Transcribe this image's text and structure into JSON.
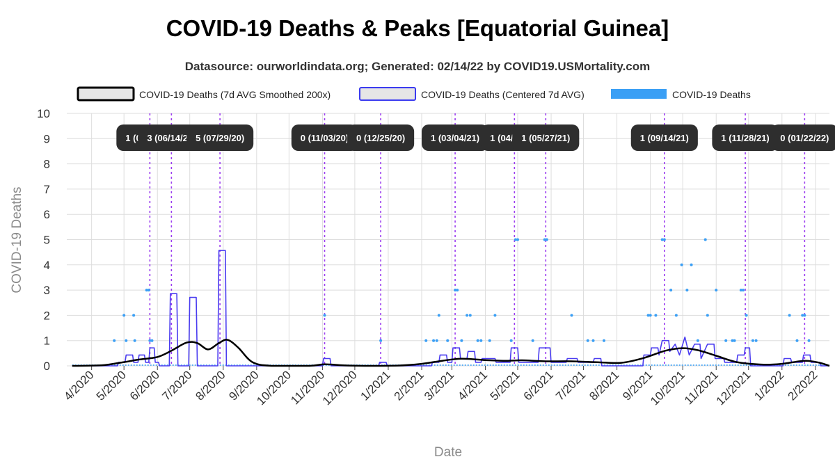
{
  "title": "COVID-19 Deaths & Peaks [Equatorial Guinea]",
  "subtitle": "Datasource: ourworldindata.org; Generated: 02/14/22 by COVID19.USMortality.com",
  "chart_data": {
    "type": "line",
    "title": "COVID-19 Deaths & Peaks [Equatorial Guinea]",
    "xlabel": "Date",
    "ylabel": "COVID-19 Deaths",
    "xlim": [
      "2020-03-09",
      "2022-02-14"
    ],
    "ylim": [
      0,
      10
    ],
    "y_ticks": [
      0,
      1,
      2,
      3,
      4,
      5,
      6,
      7,
      8,
      9,
      10
    ],
    "x_ticks": [
      {
        "date": "2020-04-01",
        "label": "4/2020"
      },
      {
        "date": "2020-05-01",
        "label": "5/2020"
      },
      {
        "date": "2020-06-01",
        "label": "6/2020"
      },
      {
        "date": "2020-07-01",
        "label": "7/2020"
      },
      {
        "date": "2020-08-01",
        "label": "8/2020"
      },
      {
        "date": "2020-09-01",
        "label": "9/2020"
      },
      {
        "date": "2020-10-01",
        "label": "10/2020"
      },
      {
        "date": "2020-11-01",
        "label": "11/2020"
      },
      {
        "date": "2020-12-01",
        "label": "12/2020"
      },
      {
        "date": "2021-01-01",
        "label": "1/2021"
      },
      {
        "date": "2021-02-01",
        "label": "2/2021"
      },
      {
        "date": "2021-03-01",
        "label": "3/2021"
      },
      {
        "date": "2021-04-01",
        "label": "4/2021"
      },
      {
        "date": "2021-05-01",
        "label": "5/2021"
      },
      {
        "date": "2021-06-01",
        "label": "6/2021"
      },
      {
        "date": "2021-07-01",
        "label": "7/2021"
      },
      {
        "date": "2021-08-01",
        "label": "8/2021"
      },
      {
        "date": "2021-09-01",
        "label": "9/2021"
      },
      {
        "date": "2021-10-01",
        "label": "10/2021"
      },
      {
        "date": "2021-11-01",
        "label": "11/2021"
      },
      {
        "date": "2021-12-01",
        "label": "12/2021"
      },
      {
        "date": "2022-01-01",
        "label": "1/2022"
      },
      {
        "date": "2022-02-01",
        "label": "2/2022"
      }
    ],
    "grid": true,
    "legend_position": "top",
    "legend": [
      {
        "name": "COVID-19 Deaths (7d AVG Smoothed 200x)",
        "color": "#000000",
        "fill": "#e6e6e6",
        "style": "line"
      },
      {
        "name": "COVID-19 Deaths (Centered 7d AVG)",
        "color": "#3b3bf0",
        "fill": "#e6e6e6",
        "style": "line"
      },
      {
        "name": "COVID-19 Deaths",
        "color": "#3a9ff5",
        "fill": "#3a9ff5",
        "style": "points"
      }
    ],
    "colors": {
      "smoothed": "#000000",
      "avg7": "#4a3cf0",
      "daily": "#3a9ff5",
      "peak_line": "#9b3cf0",
      "peak_box": "#2e2e2e",
      "grid": "#dddddd"
    },
    "peaks": [
      {
        "date": "2020-05-25",
        "label": "1 (05/25/20)"
      },
      {
        "date": "2020-06-14",
        "label": "3 (06/14/20)"
      },
      {
        "date": "2020-07-29",
        "label": "5 (07/29/20)"
      },
      {
        "date": "2020-11-03",
        "label": "0 (11/03/20)"
      },
      {
        "date": "2020-12-25",
        "label": "0 (12/25/20)"
      },
      {
        "date": "2021-03-04",
        "label": "1 (03/04/21)"
      },
      {
        "date": "2021-04-28",
        "label": "1 (04/28/21)"
      },
      {
        "date": "2021-05-27",
        "label": "1 (05/27/21)"
      },
      {
        "date": "2021-09-14",
        "label": "1 (09/14/21)"
      },
      {
        "date": "2021-11-28",
        "label": "1 (11/28/21)"
      },
      {
        "date": "2022-01-22",
        "label": "0 (01/22/22)"
      }
    ],
    "series": [
      {
        "name": "COVID-19 Deaths (7d AVG Smoothed 200x)",
        "points": [
          [
            "2020-03-14",
            0
          ],
          [
            "2020-04-10",
            0.02
          ],
          [
            "2020-05-01",
            0.15
          ],
          [
            "2020-05-15",
            0.25
          ],
          [
            "2020-06-01",
            0.35
          ],
          [
            "2020-06-14",
            0.6
          ],
          [
            "2020-06-28",
            0.92
          ],
          [
            "2020-07-08",
            0.9
          ],
          [
            "2020-07-18",
            0.65
          ],
          [
            "2020-07-28",
            0.9
          ],
          [
            "2020-08-05",
            1.03
          ],
          [
            "2020-08-15",
            0.72
          ],
          [
            "2020-08-28",
            0.15
          ],
          [
            "2020-09-15",
            0
          ],
          [
            "2020-10-20",
            0
          ],
          [
            "2020-11-03",
            0.06
          ],
          [
            "2020-11-20",
            0.02
          ],
          [
            "2020-12-10",
            0
          ],
          [
            "2021-01-10",
            0.01
          ],
          [
            "2021-02-01",
            0.08
          ],
          [
            "2021-02-20",
            0.2
          ],
          [
            "2021-03-10",
            0.28
          ],
          [
            "2021-04-01",
            0.23
          ],
          [
            "2021-04-20",
            0.2
          ],
          [
            "2021-05-05",
            0.22
          ],
          [
            "2021-05-27",
            0.18
          ],
          [
            "2021-06-20",
            0.18
          ],
          [
            "2021-07-15",
            0.14
          ],
          [
            "2021-08-05",
            0.12
          ],
          [
            "2021-08-25",
            0.3
          ],
          [
            "2021-09-15",
            0.6
          ],
          [
            "2021-10-01",
            0.7
          ],
          [
            "2021-10-15",
            0.62
          ],
          [
            "2021-11-01",
            0.4
          ],
          [
            "2021-11-20",
            0.15
          ],
          [
            "2021-12-15",
            0.05
          ],
          [
            "2022-01-01",
            0.08
          ],
          [
            "2022-01-22",
            0.2
          ],
          [
            "2022-02-05",
            0.12
          ],
          [
            "2022-02-14",
            0
          ]
        ]
      },
      {
        "name": "COVID-19 Deaths (Centered 7d AVG)",
        "points": [
          [
            "2020-03-14",
            0
          ],
          [
            "2020-04-25",
            0
          ],
          [
            "2020-04-26",
            0.14
          ],
          [
            "2020-05-02",
            0.14
          ],
          [
            "2020-05-03",
            0.43
          ],
          [
            "2020-05-09",
            0.43
          ],
          [
            "2020-05-10",
            0.14
          ],
          [
            "2020-05-14",
            0.14
          ],
          [
            "2020-05-15",
            0.43
          ],
          [
            "2020-05-20",
            0.43
          ],
          [
            "2020-05-21",
            0.14
          ],
          [
            "2020-05-24",
            0.14
          ],
          [
            "2020-05-25",
            0.71
          ],
          [
            "2020-05-29",
            0.71
          ],
          [
            "2020-05-30",
            0.14
          ],
          [
            "2020-06-02",
            0.14
          ],
          [
            "2020-06-03",
            0
          ],
          [
            "2020-06-12",
            0
          ],
          [
            "2020-06-13",
            2.86
          ],
          [
            "2020-06-19",
            2.86
          ],
          [
            "2020-06-20",
            0
          ],
          [
            "2020-06-30",
            0
          ],
          [
            "2020-07-01",
            2.71
          ],
          [
            "2020-07-07",
            2.71
          ],
          [
            "2020-07-08",
            0
          ],
          [
            "2020-07-27",
            0
          ],
          [
            "2020-07-28",
            4.57
          ],
          [
            "2020-08-03",
            4.57
          ],
          [
            "2020-08-04",
            0
          ],
          [
            "2020-11-01",
            0
          ],
          [
            "2020-11-02",
            0.29
          ],
          [
            "2020-11-08",
            0.29
          ],
          [
            "2020-11-09",
            0
          ],
          [
            "2020-12-23",
            0
          ],
          [
            "2020-12-24",
            0.14
          ],
          [
            "2020-12-30",
            0.14
          ],
          [
            "2020-12-31",
            0
          ],
          [
            "2021-02-10",
            0
          ],
          [
            "2021-02-11",
            0.14
          ],
          [
            "2021-02-17",
            0.14
          ],
          [
            "2021-02-18",
            0.43
          ],
          [
            "2021-02-24",
            0.43
          ],
          [
            "2021-02-25",
            0.14
          ],
          [
            "2021-03-01",
            0.14
          ],
          [
            "2021-03-02",
            0.71
          ],
          [
            "2021-03-08",
            0.71
          ],
          [
            "2021-03-09",
            0.29
          ],
          [
            "2021-03-15",
            0.29
          ],
          [
            "2021-03-16",
            0.57
          ],
          [
            "2021-03-22",
            0.57
          ],
          [
            "2021-03-23",
            0.14
          ],
          [
            "2021-03-28",
            0.14
          ],
          [
            "2021-03-29",
            0.29
          ],
          [
            "2021-04-10",
            0.29
          ],
          [
            "2021-04-11",
            0.14
          ],
          [
            "2021-04-24",
            0.14
          ],
          [
            "2021-04-25",
            0.71
          ],
          [
            "2021-05-01",
            0.71
          ],
          [
            "2021-05-02",
            0.14
          ],
          [
            "2021-05-20",
            0.14
          ],
          [
            "2021-05-21",
            0.71
          ],
          [
            "2021-05-31",
            0.71
          ],
          [
            "2021-06-01",
            0.14
          ],
          [
            "2021-06-15",
            0.14
          ],
          [
            "2021-06-16",
            0.29
          ],
          [
            "2021-06-25",
            0.29
          ],
          [
            "2021-06-26",
            0.14
          ],
          [
            "2021-07-10",
            0.14
          ],
          [
            "2021-07-11",
            0.29
          ],
          [
            "2021-07-17",
            0.29
          ],
          [
            "2021-07-18",
            0
          ],
          [
            "2021-08-01",
            0
          ],
          [
            "2021-08-25",
            0
          ],
          [
            "2021-08-26",
            0.43
          ],
          [
            "2021-09-01",
            0.43
          ],
          [
            "2021-09-02",
            0.71
          ],
          [
            "2021-09-08",
            0.71
          ],
          [
            "2021-09-09",
            0.43
          ],
          [
            "2021-09-12",
            1.0
          ],
          [
            "2021-09-18",
            1.0
          ],
          [
            "2021-09-19",
            0.57
          ],
          [
            "2021-09-24",
            0.86
          ],
          [
            "2021-09-28",
            0.43
          ],
          [
            "2021-10-03",
            1.14
          ],
          [
            "2021-10-07",
            0.43
          ],
          [
            "2021-10-12",
            0.86
          ],
          [
            "2021-10-17",
            0.86
          ],
          [
            "2021-10-18",
            0.29
          ],
          [
            "2021-10-24",
            0.86
          ],
          [
            "2021-10-30",
            0.86
          ],
          [
            "2021-10-31",
            0.29
          ],
          [
            "2021-11-08",
            0.29
          ],
          [
            "2021-11-09",
            0.14
          ],
          [
            "2021-11-20",
            0.14
          ],
          [
            "2021-11-21",
            0.43
          ],
          [
            "2021-11-27",
            0.43
          ],
          [
            "2021-11-28",
            0.71
          ],
          [
            "2021-12-02",
            0.71
          ],
          [
            "2021-12-03",
            0
          ],
          [
            "2022-01-02",
            0
          ],
          [
            "2022-01-03",
            0.29
          ],
          [
            "2022-01-09",
            0.29
          ],
          [
            "2022-01-10",
            0.14
          ],
          [
            "2022-01-20",
            0.14
          ],
          [
            "2022-01-21",
            0.43
          ],
          [
            "2022-01-27",
            0.43
          ],
          [
            "2022-01-28",
            0.14
          ],
          [
            "2022-02-05",
            0.14
          ],
          [
            "2022-02-06",
            0
          ],
          [
            "2022-02-14",
            0
          ]
        ]
      },
      {
        "name": "COVID-19 Deaths",
        "points": [
          [
            "2020-04-22",
            1
          ],
          [
            "2020-05-01",
            2
          ],
          [
            "2020-05-03",
            1
          ],
          [
            "2020-05-10",
            2
          ],
          [
            "2020-05-11",
            1
          ],
          [
            "2020-05-22",
            3
          ],
          [
            "2020-05-24",
            3
          ],
          [
            "2020-05-25",
            1
          ],
          [
            "2020-05-27",
            1
          ],
          [
            "2020-11-03",
            2
          ],
          [
            "2020-12-25",
            1
          ],
          [
            "2021-02-05",
            1
          ],
          [
            "2021-02-12",
            1
          ],
          [
            "2021-02-15",
            1
          ],
          [
            "2021-02-17",
            2
          ],
          [
            "2021-02-25",
            1
          ],
          [
            "2021-03-04",
            3
          ],
          [
            "2021-03-06",
            3
          ],
          [
            "2021-03-10",
            1
          ],
          [
            "2021-03-15",
            2
          ],
          [
            "2021-03-18",
            2
          ],
          [
            "2021-03-25",
            1
          ],
          [
            "2021-03-28",
            1
          ],
          [
            "2021-04-05",
            1
          ],
          [
            "2021-04-10",
            2
          ],
          [
            "2021-04-25",
            1
          ],
          [
            "2021-04-29",
            5
          ],
          [
            "2021-05-01",
            5
          ],
          [
            "2021-05-15",
            1
          ],
          [
            "2021-05-26",
            5
          ],
          [
            "2021-05-28",
            5
          ],
          [
            "2021-06-20",
            2
          ],
          [
            "2021-07-05",
            1
          ],
          [
            "2021-07-10",
            1
          ],
          [
            "2021-07-20",
            1
          ],
          [
            "2021-08-30",
            2
          ],
          [
            "2021-09-01",
            2
          ],
          [
            "2021-09-06",
            2
          ],
          [
            "2021-09-12",
            5
          ],
          [
            "2021-09-14",
            5
          ],
          [
            "2021-09-20",
            3
          ],
          [
            "2021-09-25",
            2
          ],
          [
            "2021-09-30",
            4
          ],
          [
            "2021-10-05",
            3
          ],
          [
            "2021-10-09",
            4
          ],
          [
            "2021-10-15",
            1
          ],
          [
            "2021-10-22",
            5
          ],
          [
            "2021-10-24",
            2
          ],
          [
            "2021-11-01",
            3
          ],
          [
            "2021-11-10",
            1
          ],
          [
            "2021-11-16",
            1
          ],
          [
            "2021-11-18",
            1
          ],
          [
            "2021-11-24",
            3
          ],
          [
            "2021-11-26",
            3
          ],
          [
            "2021-11-29",
            2
          ],
          [
            "2021-12-05",
            1
          ],
          [
            "2021-12-08",
            1
          ],
          [
            "2022-01-08",
            2
          ],
          [
            "2022-01-15",
            1
          ],
          [
            "2022-01-20",
            2
          ],
          [
            "2022-01-22",
            2
          ],
          [
            "2022-01-26",
            1
          ]
        ]
      }
    ]
  }
}
